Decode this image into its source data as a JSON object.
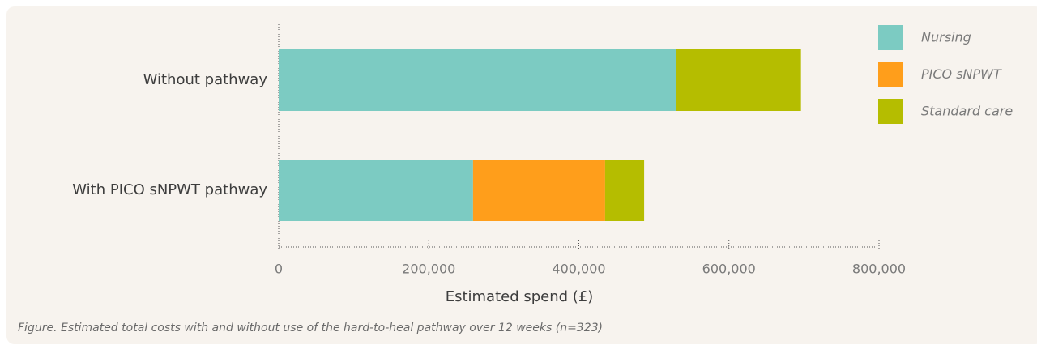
{
  "chart_data": {
    "type": "stacked-barh",
    "caption": "Figure. Estimated total costs with and without use of the hard-to-heal pathway over 12 weeks (n=323)",
    "x_label": "Estimated spend (£)",
    "categories": [
      "Without pathway",
      "With PICO sNPWT pathway"
    ],
    "series": [
      {
        "name": "Nursing",
        "color": "#7ccbc2",
        "values": [
          530000,
          259000
        ]
      },
      {
        "name": "PICO sNPWT",
        "color": "#ff9e1b",
        "values": [
          null,
          176000
        ]
      },
      {
        "name": "Standard care",
        "color": "#b5bd00",
        "values": [
          166000,
          52000
        ]
      }
    ],
    "xlim": [
      0,
      800000
    ],
    "xticks": [
      0,
      {
        "value": 200000,
        "label": "200,000"
      },
      {
        "value": 400000,
        "label": "400,000"
      },
      {
        "value": 600000,
        "label": "600,000"
      },
      {
        "value": 800000,
        "label": "800,000"
      }
    ],
    "legend_position": "upper right"
  }
}
